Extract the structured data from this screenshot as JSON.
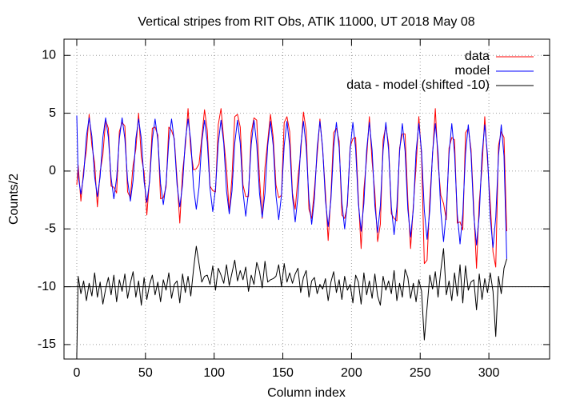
{
  "chart_data": {
    "type": "line",
    "title": "Vertical stripes from RIT Obs, ATIK 11000, UT 2018 May 08",
    "xlabel": "Column index",
    "ylabel": "Counts/2",
    "xlim": [
      -9.3,
      344.2
    ],
    "ylim": [
      -16.25,
      11.4
    ],
    "xticks": [
      0,
      50,
      100,
      150,
      200,
      250,
      300
    ],
    "yticks": [
      -15,
      -10,
      -5,
      0,
      5,
      10
    ],
    "grid": true,
    "legend": "top-right",
    "hline": -10,
    "x": [
      0,
      1,
      3,
      5,
      7,
      9,
      11,
      13,
      15,
      17,
      19,
      21,
      23,
      25,
      27,
      29,
      31,
      33,
      35,
      37,
      39,
      41,
      43,
      45,
      47,
      49,
      51,
      53,
      55,
      57,
      59,
      61,
      63,
      65,
      67,
      69,
      71,
      73,
      75,
      77,
      79,
      81,
      83,
      85,
      87,
      89,
      91,
      93,
      95,
      97,
      99,
      101,
      103,
      105,
      107,
      109,
      111,
      113,
      115,
      117,
      119,
      121,
      123,
      125,
      127,
      129,
      131,
      133,
      135,
      137,
      139,
      141,
      143,
      145,
      147,
      149,
      151,
      153,
      155,
      157,
      159,
      161,
      163,
      165,
      167,
      169,
      171,
      173,
      175,
      177,
      179,
      181,
      183,
      185,
      187,
      189,
      191,
      193,
      195,
      197,
      199,
      201,
      203,
      205,
      207,
      209,
      211,
      213,
      215,
      217,
      219,
      221,
      223,
      225,
      227,
      229,
      231,
      233,
      235,
      237,
      239,
      241,
      243,
      245,
      247,
      249,
      251,
      253,
      255,
      257,
      259,
      261,
      263,
      265,
      267,
      269,
      271,
      273,
      275,
      277,
      279,
      281,
      283,
      285,
      287,
      289,
      291,
      293,
      295,
      297,
      299,
      301,
      303,
      305,
      307,
      309,
      311,
      313
    ],
    "series": [
      {
        "name": "data",
        "color": "#ff0000",
        "values": [
          -1.2,
          0.5,
          -2.6,
          0.1,
          1.8,
          4.9,
          2.2,
          0.7,
          -3.1,
          -0.1,
          1.4,
          4.4,
          3.7,
          -1.3,
          -1.4,
          -1.9,
          3.4,
          4.2,
          3.9,
          -1.8,
          -2.3,
          0.5,
          1.9,
          5.0,
          1.2,
          -0.1,
          -3.8,
          -0.7,
          3.7,
          3.8,
          3.1,
          -2.4,
          -2.3,
          -1.4,
          3.8,
          3.5,
          2.8,
          -0.7,
          -4.5,
          -0.1,
          2.1,
          5.4,
          1.8,
          0.1,
          0.2,
          0.6,
          2.9,
          5.3,
          3.5,
          -1.3,
          -1.7,
          -1.8,
          4.0,
          5.4,
          2.7,
          0.2,
          -3.6,
          -0.5,
          4.7,
          4.9,
          3.8,
          -1.2,
          -2.2,
          -2.2,
          3.3,
          4.6,
          4.4,
          -0.6,
          -4.1,
          0.3,
          2.6,
          4.9,
          2.9,
          -1.2,
          -2.3,
          -2.1,
          4.2,
          4.7,
          3.4,
          -1.9,
          -3.3,
          -0.6,
          1.6,
          5.1,
          3.5,
          -3.3,
          -4.1,
          -1.6,
          1.4,
          4.5,
          1.8,
          -1.8,
          -6.0,
          -2.1,
          3.3,
          3.7,
          2.6,
          -3.8,
          -4.1,
          -3.0,
          2.1,
          2.8,
          2.9,
          -2.4,
          -6.7,
          -1.6,
          1.1,
          4.7,
          0.8,
          -1.9,
          -6.1,
          -4.6,
          2.7,
          3.9,
          2.3,
          -3.7,
          -4.1,
          -4.3,
          2.0,
          3.2,
          3.2,
          -2.5,
          -6.7,
          -3.0,
          0.4,
          4.7,
          1.3,
          -8.0,
          -7.7,
          -2.4,
          1.4,
          5.4,
          0.7,
          -2.1,
          -2.8,
          -4.2,
          2.0,
          2.9,
          2.7,
          -4.5,
          -4.4,
          -5.1,
          3.3,
          3.7,
          1.9,
          -3.2,
          -8.4,
          -2.7,
          0.3,
          4.7,
          0.9,
          -2.8,
          -7.0,
          -8.3,
          2.2,
          3.4,
          2.9,
          -5.2
        ]
      },
      {
        "name": "model",
        "color": "#0000ff",
        "values": [
          4.8,
          -0.4,
          -2.0,
          -0.4,
          3.0,
          4.6,
          3.0,
          -0.5,
          -2.2,
          -0.5,
          2.9,
          4.6,
          2.9,
          -0.6,
          -2.4,
          -0.6,
          2.8,
          4.6,
          2.8,
          -0.8,
          -2.6,
          -0.8,
          2.8,
          4.5,
          2.8,
          -0.9,
          -2.7,
          -0.9,
          2.7,
          4.5,
          2.7,
          -1.1,
          -2.9,
          -1.1,
          2.6,
          4.5,
          2.6,
          -1.2,
          -3.1,
          -1.2,
          2.6,
          4.5,
          2.6,
          -1.4,
          -3.3,
          -1.4,
          2.5,
          4.4,
          2.5,
          -1.5,
          -3.5,
          -1.5,
          2.4,
          4.4,
          2.4,
          -1.7,
          -3.7,
          -1.7,
          2.4,
          4.4,
          2.4,
          -1.8,
          -3.9,
          -1.8,
          2.3,
          4.4,
          2.3,
          -1.9,
          -4.0,
          -1.9,
          2.2,
          4.3,
          2.2,
          -2.1,
          -4.2,
          -2.1,
          2.2,
          4.3,
          2.2,
          -2.2,
          -4.4,
          -2.2,
          2.1,
          4.3,
          2.1,
          -2.4,
          -4.6,
          -2.4,
          2.0,
          4.3,
          2.0,
          -2.5,
          -4.8,
          -2.5,
          2.0,
          4.2,
          2.0,
          -2.7,
          -5.0,
          -2.7,
          1.9,
          4.2,
          1.9,
          -2.8,
          -5.2,
          -2.8,
          1.8,
          4.2,
          1.8,
          -3.0,
          -5.3,
          -3.0,
          1.8,
          4.2,
          1.8,
          -3.1,
          -5.5,
          -3.1,
          1.7,
          4.1,
          1.7,
          -3.3,
          -5.7,
          -3.3,
          1.7,
          4.1,
          1.7,
          -3.4,
          -5.9,
          -3.4,
          1.6,
          4.1,
          1.6,
          -3.5,
          -6.1,
          -3.5,
          1.5,
          4.1,
          1.5,
          -3.7,
          -6.3,
          -3.7,
          1.5,
          4.0,
          1.5,
          -3.8,
          -6.4,
          -3.8,
          1.4,
          4.0,
          1.4,
          -4.0,
          -6.6,
          -4.0,
          1.3,
          4.0,
          1.3,
          -7.6
        ]
      },
      {
        "name": "data - model (shifted -10)",
        "color": "#000000",
        "values": [
          -16.0,
          -9.1,
          -10.6,
          -9.5,
          -11.2,
          -9.7,
          -10.8,
          -8.8,
          -10.9,
          -9.6,
          -11.5,
          -10.2,
          -9.2,
          -10.7,
          -9.0,
          -11.3,
          -9.4,
          -10.4,
          -8.9,
          -11.0,
          -9.7,
          -8.7,
          -10.9,
          -9.5,
          -11.6,
          -9.2,
          -11.1,
          -9.8,
          -9.0,
          -10.7,
          -9.6,
          -11.3,
          -9.4,
          -10.3,
          -8.8,
          -11.0,
          -9.8,
          -9.5,
          -11.4,
          -8.9,
          -10.5,
          -9.1,
          -10.8,
          -8.5,
          -6.5,
          -8.0,
          -9.6,
          -9.1,
          -9.0,
          -9.8,
          -8.2,
          -10.3,
          -8.4,
          -9.0,
          -9.7,
          -8.1,
          -9.9,
          -8.8,
          -7.7,
          -9.5,
          -8.6,
          -9.4,
          -8.3,
          -10.4,
          -9.0,
          -9.8,
          -7.9,
          -8.7,
          -10.1,
          -7.8,
          -9.6,
          -9.4,
          -9.3,
          -9.1,
          -8.1,
          -10.0,
          -8.0,
          -9.6,
          -8.8,
          -9.7,
          -8.9,
          -8.4,
          -10.5,
          -9.2,
          -8.6,
          -10.9,
          -9.5,
          -9.2,
          -10.6,
          -9.8,
          -10.2,
          -9.3,
          -11.2,
          -9.6,
          -8.7,
          -10.5,
          -9.4,
          -11.1,
          -9.1,
          -10.3,
          -9.8,
          -11.4,
          -9.0,
          -9.6,
          -11.5,
          -8.8,
          -10.7,
          -9.5,
          -11.0,
          -8.9,
          -10.8,
          -11.6,
          -9.1,
          -10.3,
          -9.5,
          -10.6,
          -8.6,
          -11.2,
          -9.7,
          -10.9,
          -8.5,
          -9.2,
          -11.0,
          -9.7,
          -11.3,
          -9.4,
          -10.4,
          -14.6,
          -11.8,
          -9.0,
          -10.2,
          -8.7,
          -10.9,
          -8.6,
          -6.7,
          -10.7,
          -9.5,
          -11.2,
          -8.8,
          -10.8,
          -8.1,
          -11.4,
          -8.2,
          -10.3,
          -9.6,
          -9.4,
          -12.0,
          -8.9,
          -11.1,
          -9.3,
          -10.5,
          -8.8,
          -10.4,
          -14.3,
          -9.1,
          -10.6,
          -8.4,
          -7.6
        ]
      }
    ]
  }
}
